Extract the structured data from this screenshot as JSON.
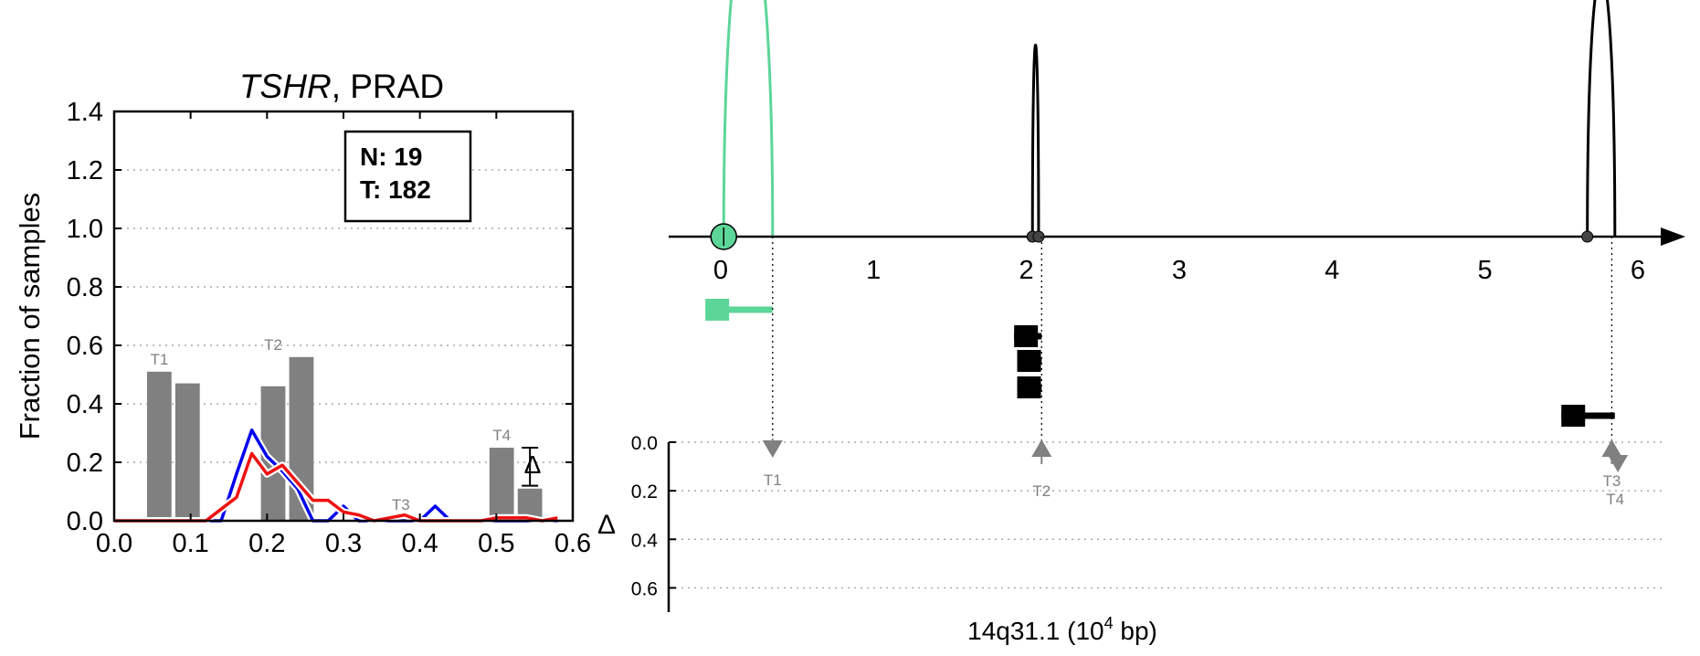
{
  "chart_data": [
    {
      "type": "bar",
      "title_gene": "TSHR",
      "title_rest": ", PRAD",
      "ylabel": "Fraction of samples",
      "xlim": [
        0.0,
        0.6
      ],
      "ylim": [
        0.0,
        1.4
      ],
      "xticks": [
        "0.0",
        "0.1",
        "0.2",
        "0.3",
        "0.4",
        "0.5",
        "0.6"
      ],
      "yticks": [
        "0.0",
        "0.2",
        "0.4",
        "0.6",
        "0.8",
        "1.0",
        "1.2",
        "1.4"
      ],
      "legend_box": {
        "line1": "N: 19",
        "line2": "T: 182"
      },
      "delta_symbol": "Δ",
      "colors": {
        "bars": "#808080",
        "normal_line": "#0000ee",
        "tumor_line": "#ee1111"
      },
      "bar_groups": [
        {
          "label": "T1",
          "bars": [
            {
              "x": [
                0.043,
                0.075
              ],
              "value": 0.51
            },
            {
              "x": [
                0.08,
                0.112
              ],
              "value": 0.47
            }
          ]
        },
        {
          "label": "T2",
          "bars": [
            {
              "x": [
                0.192,
                0.224
              ],
              "value": 0.46
            },
            {
              "x": [
                0.229,
                0.261
              ],
              "value": 0.56
            }
          ]
        },
        {
          "label": "T3",
          "bars": []
        },
        {
          "label": "T4",
          "bars": [
            {
              "x": [
                0.491,
                0.523
              ],
              "value": 0.25
            },
            {
              "x": [
                0.528,
                0.56
              ],
              "value": 0.11
            }
          ]
        }
      ],
      "error_bar": {
        "x": 0.544,
        "low": 0.12,
        "high": 0.25
      },
      "series": [
        {
          "color": "#0000ee",
          "x": [
            0.0,
            0.02,
            0.04,
            0.06,
            0.08,
            0.1,
            0.12,
            0.14,
            0.16,
            0.18,
            0.2,
            0.22,
            0.24,
            0.26,
            0.28,
            0.3,
            0.32,
            0.34,
            0.36,
            0.38,
            0.4,
            0.42,
            0.44,
            0.46,
            0.48,
            0.5,
            0.52,
            0.54,
            0.56,
            0.58
          ],
          "y": [
            0.0,
            0.0,
            0.0,
            0.0,
            0.0,
            0.0,
            0.0,
            0.0,
            0.16,
            0.31,
            0.22,
            0.17,
            0.11,
            0.0,
            0.0,
            0.05,
            0.0,
            0.0,
            0.0,
            0.0,
            0.0,
            0.05,
            0.0,
            0.0,
            0.0,
            0.0,
            0.0,
            0.0,
            0.0,
            0.0
          ]
        },
        {
          "color": "#ee1111",
          "x": [
            0.0,
            0.02,
            0.04,
            0.06,
            0.08,
            0.1,
            0.12,
            0.14,
            0.16,
            0.18,
            0.2,
            0.22,
            0.24,
            0.26,
            0.28,
            0.3,
            0.32,
            0.34,
            0.36,
            0.38,
            0.4,
            0.42,
            0.44,
            0.46,
            0.48,
            0.5,
            0.52,
            0.54,
            0.56,
            0.58
          ],
          "y": [
            0.0,
            0.0,
            0.0,
            0.0,
            0.0,
            0.0,
            0.0,
            0.04,
            0.08,
            0.23,
            0.16,
            0.19,
            0.13,
            0.07,
            0.07,
            0.03,
            0.02,
            0.0,
            0.01,
            0.02,
            0.0,
            0.0,
            0.0,
            0.0,
            0.0,
            0.01,
            0.01,
            0.01,
            0.0,
            0.01
          ]
        }
      ]
    },
    {
      "type": "diagram",
      "xlabel": "14q31.1 (10",
      "xlabel_sup": "4",
      "xlabel_tail": " bp)",
      "xticks": [
        "0",
        "1",
        "2",
        "3",
        "4",
        "5",
        "6"
      ],
      "xlim": [
        -0.34,
        6.15
      ],
      "delta_symbol": "Δ",
      "delta_ticks": [
        "0.0",
        "0.2",
        "0.4",
        "0.6"
      ],
      "delta_lim": [
        0.0,
        0.7
      ],
      "colors": {
        "first_transcript": "#5cd698",
        "other": "#000000",
        "markers": "#808080"
      },
      "arcs": [
        {
          "x0": 0.02,
          "x1": 0.34,
          "height": 1.0,
          "color": "#5cd698"
        },
        {
          "x0": 2.04,
          "x1": 2.08,
          "height": 0.6,
          "color": "#000000"
        },
        {
          "x0": 5.67,
          "x1": 5.85,
          "height": 0.82,
          "color": "#000000"
        }
      ],
      "axis_circles": [
        {
          "x": 0.02,
          "big": true,
          "color": "#5cd698"
        },
        {
          "x": 2.04,
          "big": false,
          "color": "#000000"
        },
        {
          "x": 2.08,
          "big": false,
          "color": "#000000"
        },
        {
          "x": 5.67,
          "big": false,
          "color": "#000000"
        }
      ],
      "transcripts": [
        {
          "row": 0,
          "start": -0.1,
          "end": 0.34,
          "color": "#5cd698"
        },
        {
          "row": 1,
          "start": 1.92,
          "end": 2.1,
          "color": "#000000"
        },
        {
          "row": 2,
          "start": 1.94,
          "end": 2.1,
          "color": "#000000"
        },
        {
          "row": 3,
          "start": 1.94,
          "end": 2.1,
          "color": "#000000"
        },
        {
          "row": 4,
          "start": 5.5,
          "end": 5.85,
          "color": "#000000"
        }
      ],
      "markers": [
        {
          "label": "T1",
          "x": 0.34,
          "dir": "down",
          "delta": 0.0
        },
        {
          "label": "T2",
          "x": 2.1,
          "dir": "up",
          "delta": 0.0
        },
        {
          "label": "T3",
          "x": 5.83,
          "dir": "up",
          "delta": 0.0
        },
        {
          "label": "T4",
          "x": 5.87,
          "dir": "down",
          "delta": 0.06
        }
      ]
    }
  ]
}
